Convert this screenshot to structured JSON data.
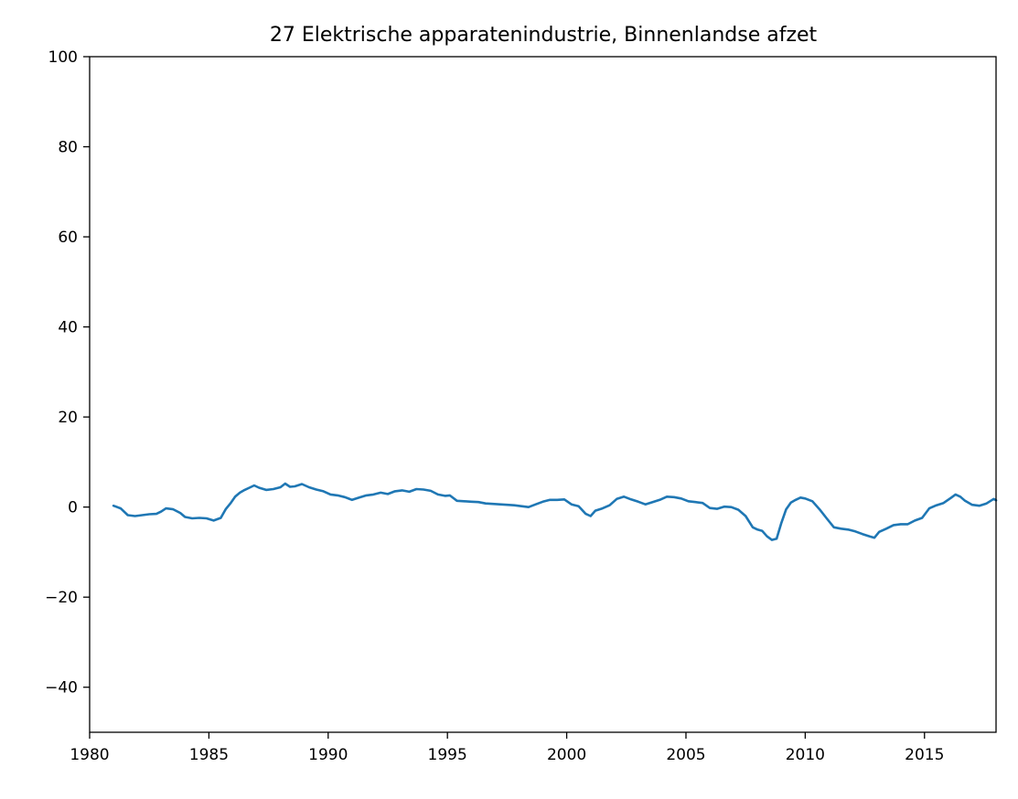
{
  "chart_data": {
    "type": "line",
    "title": "27 Elektrische apparatenindustrie, Binnenlandse afzet",
    "xlabel": "",
    "ylabel": "",
    "xlim": [
      1980,
      2018
    ],
    "ylim": [
      -50,
      100
    ],
    "x_ticks": [
      1980,
      1985,
      1990,
      1995,
      2000,
      2005,
      2010,
      2015
    ],
    "x_tick_labels": [
      "1980",
      "1985",
      "1990",
      "1995",
      "2000",
      "2005",
      "2010",
      "2015"
    ],
    "y_ticks": [
      -40,
      -20,
      0,
      20,
      40,
      60,
      80,
      100
    ],
    "y_tick_labels": [
      "−40",
      "−20",
      "0",
      "20",
      "40",
      "60",
      "80",
      "100"
    ],
    "grid": false,
    "legend": "none",
    "line_color": "#1f77b4",
    "series": [
      {
        "x": [
          1981.0,
          1981.3,
          1981.6,
          1981.9,
          1982.2,
          1982.5,
          1982.8,
          1983.0,
          1983.2,
          1983.5,
          1983.8,
          1984.0,
          1984.3,
          1984.6,
          1984.9,
          1985.2,
          1985.5,
          1985.7,
          1985.9,
          1986.1,
          1986.3,
          1986.5,
          1986.7,
          1986.9,
          1987.1,
          1987.4,
          1987.7,
          1988.0,
          1988.2,
          1988.4,
          1988.6,
          1988.9,
          1989.2,
          1989.5,
          1989.8,
          1990.1,
          1990.4,
          1990.7,
          1991.0,
          1991.3,
          1991.6,
          1991.9,
          1992.2,
          1992.5,
          1992.8,
          1993.1,
          1993.4,
          1993.7,
          1994.0,
          1994.3,
          1994.6,
          1994.9,
          1995.1,
          1995.4,
          1995.7,
          1996.0,
          1996.3,
          1996.6,
          1996.9,
          1997.2,
          1997.5,
          1997.8,
          1998.1,
          1998.4,
          1998.7,
          1999.0,
          1999.3,
          1999.6,
          1999.9,
          2000.2,
          2000.5,
          2000.8,
          2001.0,
          2001.2,
          2001.5,
          2001.8,
          2002.1,
          2002.4,
          2002.7,
          2003.0,
          2003.3,
          2003.6,
          2003.9,
          2004.2,
          2004.5,
          2004.8,
          2005.1,
          2005.4,
          2005.7,
          2006.0,
          2006.3,
          2006.6,
          2006.9,
          2007.2,
          2007.5,
          2007.8,
          2008.0,
          2008.2,
          2008.4,
          2008.6,
          2008.8,
          2009.0,
          2009.2,
          2009.4,
          2009.6,
          2009.8,
          2010.0,
          2010.3,
          2010.6,
          2010.9,
          2011.2,
          2011.5,
          2011.8,
          2012.1,
          2012.4,
          2012.7,
          2012.9,
          2013.1,
          2013.4,
          2013.7,
          2014.0,
          2014.3,
          2014.6,
          2014.9,
          2015.2,
          2015.5,
          2015.8,
          2016.1,
          2016.3,
          2016.5,
          2016.7,
          2017.0,
          2017.3,
          2017.6,
          2017.9,
          2018.0
        ],
        "y": [
          0.3,
          -0.3,
          -1.8,
          -2.0,
          -1.8,
          -1.6,
          -1.5,
          -1.0,
          -0.3,
          -0.5,
          -1.3,
          -2.2,
          -2.5,
          -2.4,
          -2.5,
          -3.0,
          -2.4,
          -0.5,
          0.8,
          2.3,
          3.2,
          3.8,
          4.3,
          4.8,
          4.3,
          3.8,
          4.0,
          4.4,
          5.2,
          4.5,
          4.6,
          5.1,
          4.4,
          3.9,
          3.5,
          2.8,
          2.6,
          2.2,
          1.6,
          2.1,
          2.6,
          2.8,
          3.2,
          2.9,
          3.5,
          3.7,
          3.4,
          4.0,
          3.9,
          3.6,
          2.8,
          2.5,
          2.6,
          1.4,
          1.3,
          1.2,
          1.1,
          0.8,
          0.7,
          0.6,
          0.5,
          0.4,
          0.2,
          0.0,
          0.6,
          1.2,
          1.6,
          1.6,
          1.7,
          0.6,
          0.2,
          -1.5,
          -2.0,
          -0.8,
          -0.3,
          0.4,
          1.8,
          2.3,
          1.7,
          1.2,
          0.6,
          1.1,
          1.6,
          2.3,
          2.2,
          1.9,
          1.3,
          1.1,
          0.9,
          -0.2,
          -0.4,
          0.1,
          0.0,
          -0.6,
          -2.0,
          -4.5,
          -5.0,
          -5.3,
          -6.5,
          -7.3,
          -7.0,
          -3.5,
          -0.5,
          1.0,
          1.6,
          2.1,
          1.9,
          1.3,
          -0.5,
          -2.5,
          -4.5,
          -4.8,
          -5.0,
          -5.4,
          -6.0,
          -6.5,
          -6.8,
          -5.5,
          -4.8,
          -4.0,
          -3.8,
          -3.8,
          -3.0,
          -2.4,
          -0.3,
          0.4,
          0.9,
          2.0,
          2.8,
          2.3,
          1.4,
          0.5,
          0.3,
          0.8,
          1.8,
          1.5
        ]
      }
    ]
  }
}
